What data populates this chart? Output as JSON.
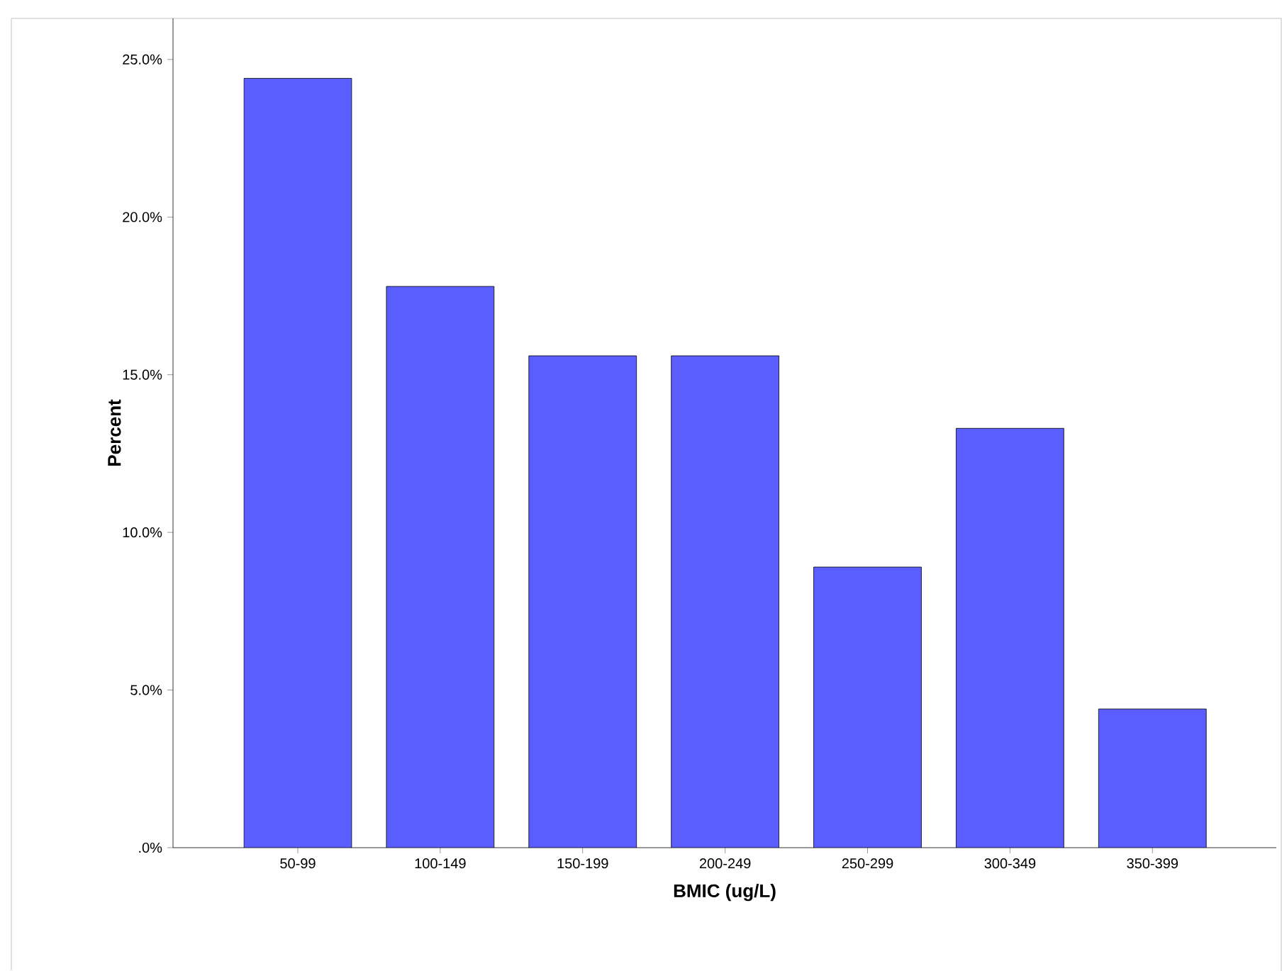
{
  "chart_data": {
    "type": "bar",
    "xlabel": "BMIC (ug/L)",
    "ylabel": "Percent",
    "categories": [
      "50-99",
      "100-149",
      "150-199",
      "200-249",
      "250-299",
      "300-349",
      "350-399"
    ],
    "values": [
      24.4,
      17.8,
      15.6,
      15.6,
      8.9,
      13.3,
      4.4
    ],
    "color": "#5a5eff",
    "ylim": [
      0,
      26.3
    ],
    "yticks": [
      {
        "value": 0,
        "label": ".0%"
      },
      {
        "value": 5,
        "label": "5.0%"
      },
      {
        "value": 10,
        "label": "10.0%"
      },
      {
        "value": 15,
        "label": "15.0%"
      },
      {
        "value": 20,
        "label": "20.0%"
      },
      {
        "value": 25,
        "label": "25.0%"
      }
    ],
    "grid": false
  }
}
